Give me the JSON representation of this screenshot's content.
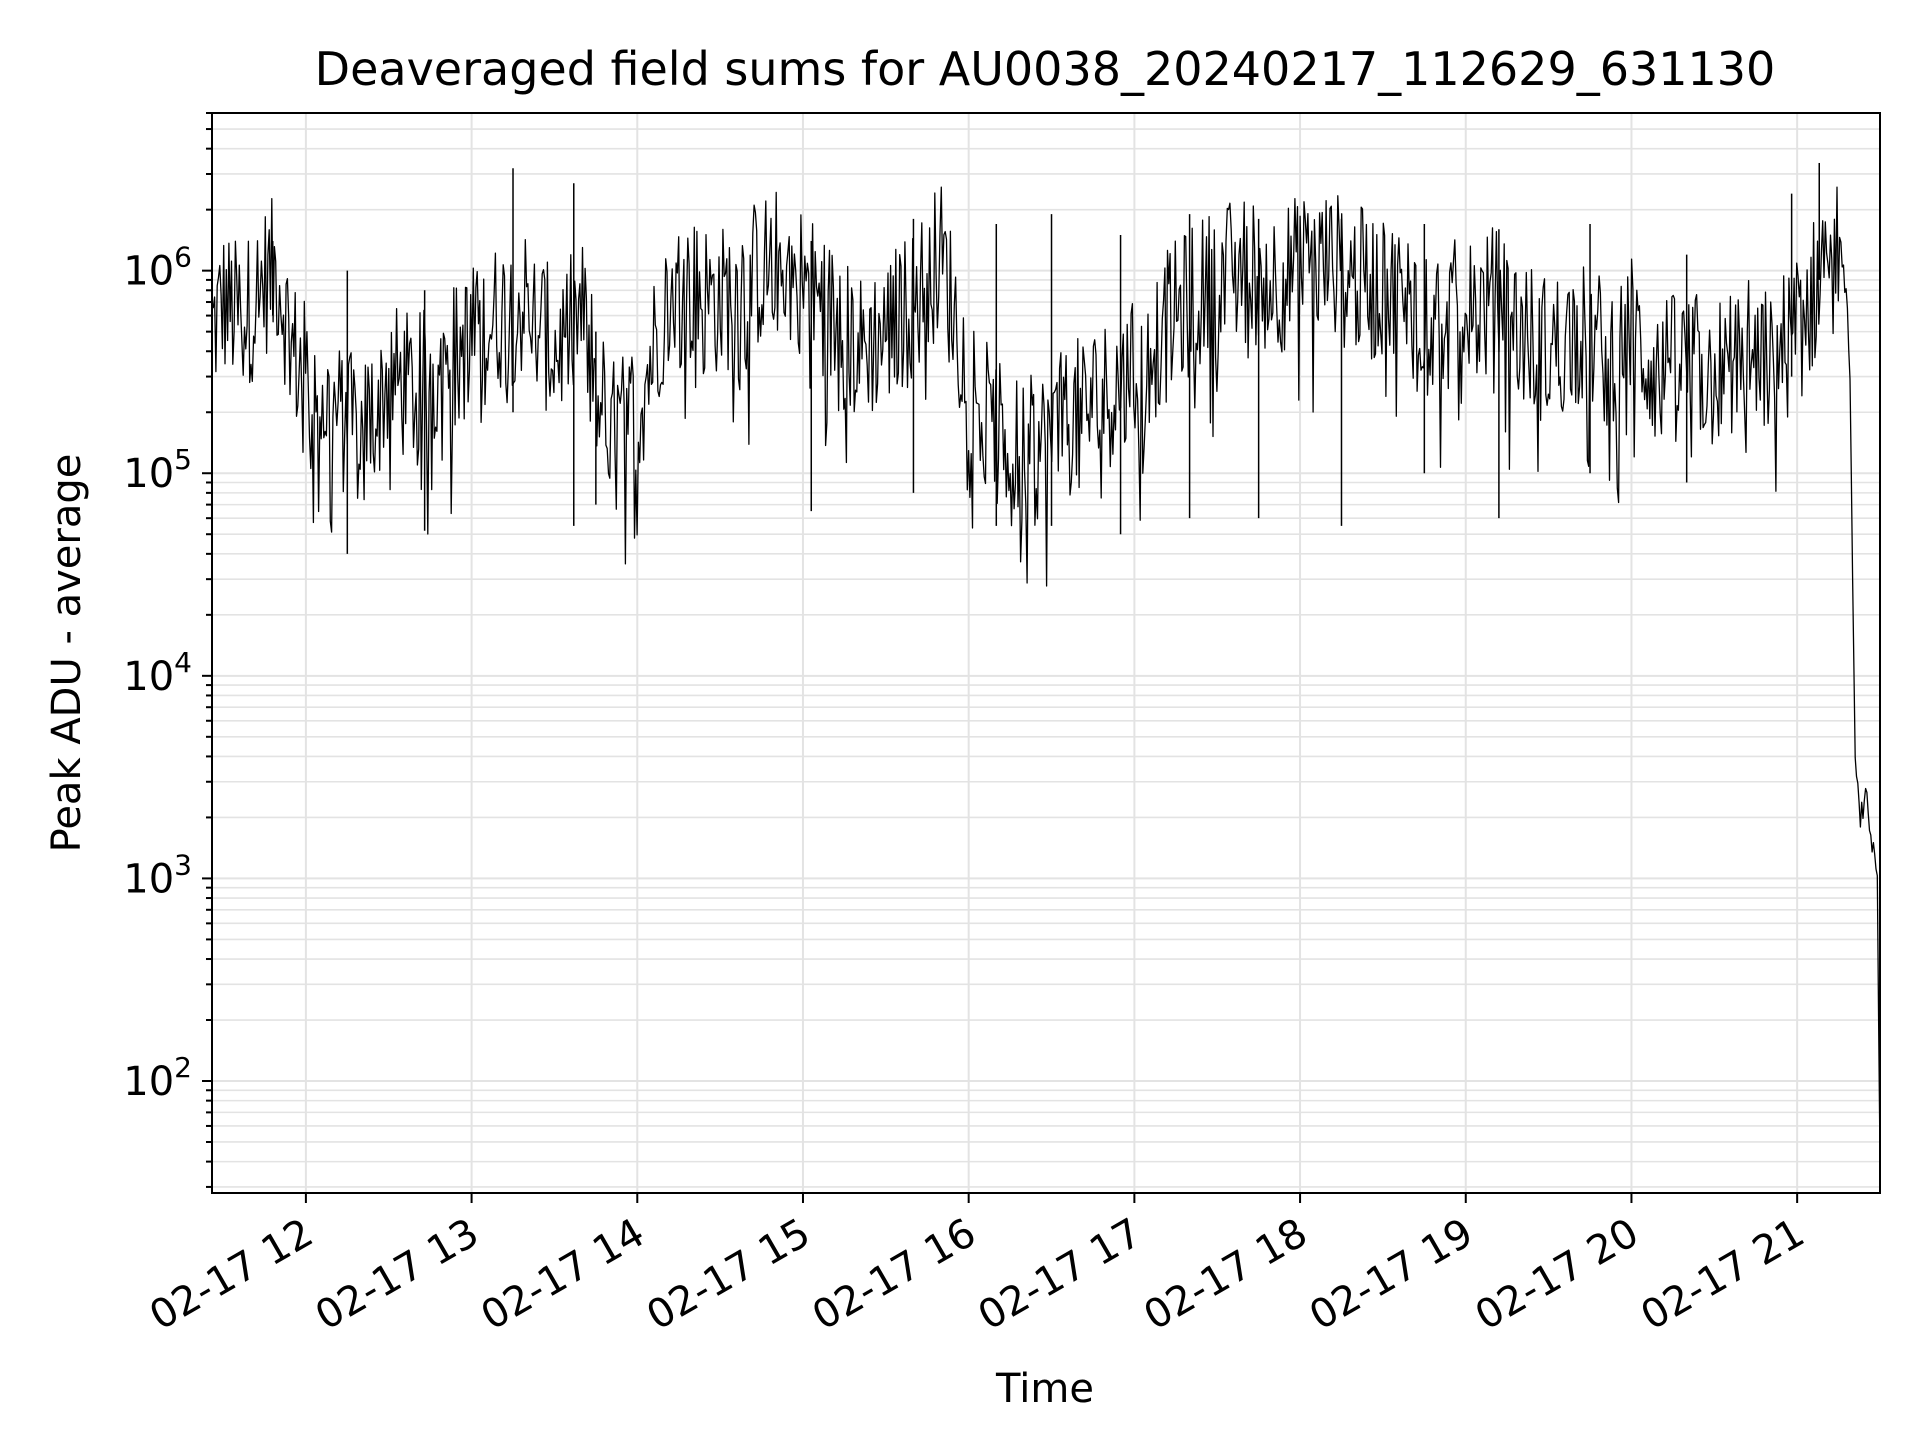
{
  "chart_data": {
    "type": "line",
    "title": "Deaveraged field sums for AU0038_20240217_112629_631130",
    "xlabel": "Time",
    "ylabel": "Peak ADU - average",
    "yscale": "log",
    "ylim": [
      28,
      6000000
    ],
    "xlim": [
      "2024-02-17 11:26:29",
      "2024-02-17 21:30:00"
    ],
    "x_tick_labels": [
      "02-17 12",
      "02-17 13",
      "02-17 14",
      "02-17 15",
      "02-17 16",
      "02-17 17",
      "02-17 18",
      "02-17 19",
      "02-17 20",
      "02-17 21"
    ],
    "x_tick_values": [
      "2024-02-17 12:00",
      "2024-02-17 13:00",
      "2024-02-17 14:00",
      "2024-02-17 15:00",
      "2024-02-17 16:00",
      "2024-02-17 17:00",
      "2024-02-17 18:00",
      "2024-02-17 19:00",
      "2024-02-17 20:00",
      "2024-02-17 21:00"
    ],
    "y_ticks": [
      {
        "value": 100,
        "base": "10",
        "exp": "2"
      },
      {
        "value": 1000,
        "base": "10",
        "exp": "3"
      },
      {
        "value": 10000,
        "base": "10",
        "exp": "4"
      },
      {
        "value": 100000,
        "base": "10",
        "exp": "5"
      },
      {
        "value": 1000000,
        "base": "10",
        "exp": "6"
      }
    ],
    "grid": true,
    "line_color": "#000000",
    "grid_color": "#e3e3e3",
    "series": [
      {
        "x": [
          "2024-02-17 11:26",
          "2024-02-17 11:30",
          "2024-02-17 11:35",
          "2024-02-17 11:40",
          "2024-02-17 11:45",
          "2024-02-17 11:50",
          "2024-02-17 11:55",
          "2024-02-17 12:00",
          "2024-02-17 12:10",
          "2024-02-17 12:20",
          "2024-02-17 12:30",
          "2024-02-17 12:40",
          "2024-02-17 12:50",
          "2024-02-17 13:00",
          "2024-02-17 13:10",
          "2024-02-17 13:20",
          "2024-02-17 13:30",
          "2024-02-17 13:40",
          "2024-02-17 13:50",
          "2024-02-17 14:00",
          "2024-02-17 14:10",
          "2024-02-17 14:20",
          "2024-02-17 14:30",
          "2024-02-17 14:40",
          "2024-02-17 14:50",
          "2024-02-17 15:00",
          "2024-02-17 15:10",
          "2024-02-17 15:20",
          "2024-02-17 15:30",
          "2024-02-17 15:40",
          "2024-02-17 15:50",
          "2024-02-17 16:00",
          "2024-02-17 16:10",
          "2024-02-17 16:20",
          "2024-02-17 16:30",
          "2024-02-17 16:40",
          "2024-02-17 16:50",
          "2024-02-17 17:00",
          "2024-02-17 17:10",
          "2024-02-17 17:20",
          "2024-02-17 17:30",
          "2024-02-17 17:40",
          "2024-02-17 17:50",
          "2024-02-17 18:00",
          "2024-02-17 18:10",
          "2024-02-17 18:20",
          "2024-02-17 18:30",
          "2024-02-17 18:40",
          "2024-02-17 18:50",
          "2024-02-17 19:00",
          "2024-02-17 19:10",
          "2024-02-17 19:20",
          "2024-02-17 19:30",
          "2024-02-17 19:40",
          "2024-02-17 19:50",
          "2024-02-17 20:00",
          "2024-02-17 20:10",
          "2024-02-17 20:20",
          "2024-02-17 20:30",
          "2024-02-17 20:40",
          "2024-02-17 20:50",
          "2024-02-17 21:00",
          "2024-02-17 21:05",
          "2024-02-17 21:10",
          "2024-02-17 21:13",
          "2024-02-17 21:15",
          "2024-02-17 21:17",
          "2024-02-17 21:19",
          "2024-02-17 21:21",
          "2024-02-17 21:23",
          "2024-02-17 21:25",
          "2024-02-17 21:27",
          "2024-02-17 21:29",
          "2024-02-17 21:30"
        ],
        "y": [
          500000,
          700000,
          600000,
          650000,
          900000,
          1000000,
          400000,
          300000,
          200000,
          150000,
          300000,
          250000,
          350000,
          450000,
          600000,
          700000,
          400000,
          600000,
          150000,
          200000,
          700000,
          800000,
          700000,
          900000,
          1100000,
          900000,
          600000,
          400000,
          500000,
          700000,
          1200000,
          300000,
          150000,
          120000,
          150000,
          200000,
          250000,
          300000,
          500000,
          700000,
          900000,
          1000000,
          900000,
          1000000,
          1100000,
          900000,
          800000,
          700000,
          600000,
          600000,
          700000,
          500000,
          400000,
          500000,
          400000,
          500000,
          300000,
          350000,
          300000,
          400000,
          350000,
          500000,
          700000,
          1200000,
          1500000,
          1400000,
          1000000,
          400000,
          3500,
          2000,
          2500,
          1500,
          1100,
          40
        ]
      }
    ],
    "spikes": [
      {
        "x": "2024-02-17 11:48",
        "high": 1400000,
        "low": 600000
      },
      {
        "x": "2024-02-17 12:15",
        "high": 1000000,
        "low": 40000
      },
      {
        "x": "2024-02-17 12:43",
        "high": 800000,
        "low": 52000
      },
      {
        "x": "2024-02-17 13:15",
        "high": 3200000,
        "low": 200000
      },
      {
        "x": "2024-02-17 13:37",
        "high": 2700000,
        "low": 55000
      },
      {
        "x": "2024-02-17 13:45",
        "high": 500000,
        "low": 70000
      },
      {
        "x": "2024-02-17 15:03",
        "high": 1400000,
        "low": 65000
      },
      {
        "x": "2024-02-17 15:40",
        "high": 1800000,
        "low": 80000
      },
      {
        "x": "2024-02-17 16:10",
        "high": 1700000,
        "low": 55000
      },
      {
        "x": "2024-02-17 16:30",
        "high": 1900000,
        "low": 55000
      },
      {
        "x": "2024-02-17 16:55",
        "high": 1500000,
        "low": 50000
      },
      {
        "x": "2024-02-17 17:20",
        "high": 1900000,
        "low": 60000
      },
      {
        "x": "2024-02-17 17:45",
        "high": 1800000,
        "low": 60000
      },
      {
        "x": "2024-02-17 18:15",
        "high": 1800000,
        "low": 55000
      },
      {
        "x": "2024-02-17 18:45",
        "high": 1700000,
        "low": 100000
      },
      {
        "x": "2024-02-17 19:12",
        "high": 1600000,
        "low": 60000
      },
      {
        "x": "2024-02-17 19:45",
        "high": 1700000,
        "low": 100000
      },
      {
        "x": "2024-02-17 20:20",
        "high": 1200000,
        "low": 90000
      },
      {
        "x": "2024-02-17 20:58",
        "high": 2400000,
        "low": 300000
      },
      {
        "x": "2024-02-17 21:08",
        "high": 3400000,
        "low": 900000
      }
    ]
  }
}
